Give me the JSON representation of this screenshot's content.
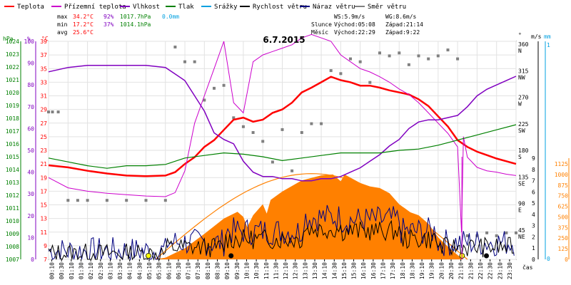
{
  "chart_data": {
    "type": "line",
    "title": "6.7.2015",
    "x_axis_label": "čas",
    "x_ticks": [
      "00:10",
      "00:30",
      "01:10",
      "01:30",
      "02:10",
      "02:30",
      "03:10",
      "03:30",
      "04:10",
      "04:30",
      "05:10",
      "05:30",
      "06:10",
      "06:30",
      "07:10",
      "07:30",
      "08:10",
      "08:30",
      "09:10",
      "09:30",
      "10:10",
      "10:30",
      "11:10",
      "11:30",
      "12:10",
      "12:30",
      "13:10",
      "13:30",
      "14:10",
      "14:30",
      "15:10",
      "15:30",
      "16:10",
      "16:30",
      "17:10",
      "17:30",
      "18:10",
      "18:30",
      "19:10",
      "19:30",
      "20:10",
      "20:30",
      "21:10",
      "21:30",
      "22:10",
      "22:30",
      "23:10",
      "23:30"
    ],
    "legend": [
      {
        "label": "Teplota",
        "color": "#ff0000"
      },
      {
        "label": "Přízemní teplota",
        "color": "#cc00cc"
      },
      {
        "label": "Vlhkost",
        "color": "#8000c0"
      },
      {
        "label": "Tlak",
        "color": "#008000"
      },
      {
        "label": "Srážky",
        "color": "#00a0e0"
      },
      {
        "label": "Rychlost větru",
        "color": "#000000"
      },
      {
        "label": "Náraz větru",
        "color": "#000080"
      },
      {
        "label": "Směr větru",
        "color": "#808080"
      }
    ],
    "stats": {
      "max_label": "max",
      "max_temp": "34.2°C",
      "max_hum": "92%",
      "max_press": "1017.7hPa",
      "max_rain": "0.0mm",
      "min_label": "min",
      "min_temp": "17.2°C",
      "min_hum": "37%",
      "min_press": "1014.1hPa",
      "avg_label": "avg",
      "avg_temp": "25.6°C",
      "ws": "WS:5.9m/s",
      "wg": "WG:8.6m/s",
      "sun_label": "Slunce",
      "sunrise": "Východ:05:08",
      "sunset": "Západ:21:14",
      "moon_label": "Měsíc",
      "moonrise": "Východ:22:29",
      "moonset": "Západ:9:22"
    },
    "axes": {
      "hpa": {
        "unit": "hPa",
        "color": "#008000",
        "ticks": [
          "1024",
          "1023",
          "1022",
          "1021",
          "1020",
          "1019",
          "1018",
          "1017",
          "1016",
          "1015",
          "1014",
          "1013",
          "1012",
          "1011",
          "1010",
          "1009",
          "1008",
          "1007"
        ]
      },
      "pct": {
        "unit": "%",
        "color": "#8000c0",
        "ticks": [
          "100",
          "90",
          "80",
          "70",
          "60",
          "50",
          "40",
          "30",
          "20",
          "10",
          "0"
        ]
      },
      "temp": {
        "unit": "°C",
        "color": "#ff0000",
        "ticks": [
          "39",
          "37",
          "35",
          "33",
          "31",
          "29",
          "27",
          "25",
          "23",
          "21",
          "19",
          "17",
          "15",
          "13",
          "11",
          "9",
          "7"
        ]
      },
      "dir": {
        "unit": "°",
        "ticks": [
          "360",
          "315",
          "270",
          "225",
          "180",
          "135",
          "90",
          "45"
        ],
        "labels": [
          "N",
          "NW",
          "W",
          "SW",
          "S",
          "SE",
          "E",
          "NE"
        ]
      },
      "ms": {
        "unit": "m/s",
        "ticks": [
          "9",
          "8",
          "7",
          "6",
          "5",
          "4",
          "3",
          "2",
          "1",
          "0"
        ]
      },
      "mm": {
        "unit": "mm",
        "ticks": [
          "1",
          "0"
        ]
      },
      "wm2": {
        "ticks": [
          "1125",
          "1000",
          "875",
          "750",
          "625",
          "500",
          "375",
          "250",
          "125",
          "0"
        ]
      }
    },
    "series": [
      {
        "name": "Teplota",
        "color": "#ff0000",
        "x": [
          0,
          1,
          2,
          3,
          4,
          5,
          6,
          6.5,
          7,
          7.5,
          8,
          8.5,
          9,
          9.5,
          10,
          10.5,
          11,
          11.5,
          12,
          12.5,
          13,
          13.5,
          14,
          14.5,
          15,
          15.5,
          16,
          16.5,
          17,
          17.5,
          18,
          18.5,
          19,
          19.5,
          20,
          20.5,
          21,
          21.5,
          22,
          22.5,
          23,
          23.5,
          24
        ],
        "y": [
          20.8,
          20.5,
          20.0,
          19.6,
          19.3,
          19.2,
          19.3,
          19.8,
          21.0,
          22.0,
          23.5,
          24.5,
          26.0,
          27.5,
          27.8,
          27.2,
          27.5,
          28.5,
          29.0,
          30.0,
          31.5,
          32.2,
          33.0,
          33.8,
          33.3,
          33.0,
          32.5,
          32.5,
          32.2,
          31.8,
          31.5,
          31.2,
          30.5,
          29.5,
          28.0,
          26.5,
          24.5,
          23.5,
          22.8,
          22.3,
          21.8,
          21.4,
          21.0
        ]
      },
      {
        "name": "Přízemní teplota",
        "color": "#cc00cc",
        "x": [
          0,
          1,
          2,
          3,
          4,
          5,
          6,
          6.5,
          7,
          7.5,
          8,
          8.5,
          9,
          9.5,
          10,
          10.5,
          11,
          11.5,
          12,
          12.5,
          13,
          13.5,
          14,
          14.5,
          15,
          15.5,
          16,
          16.5,
          17,
          17.5,
          18,
          18.5,
          19,
          19.5,
          20,
          20.5,
          21,
          21.2,
          21.3,
          21.5,
          22,
          22.5,
          23,
          23.5,
          24
        ],
        "y": [
          19.0,
          17.5,
          17.0,
          16.7,
          16.5,
          16.3,
          16.2,
          16.8,
          20.0,
          27.0,
          31.0,
          35.0,
          39.0,
          30.0,
          28.5,
          36.0,
          37.0,
          37.5,
          38.0,
          38.5,
          39.5,
          40.0,
          39.5,
          39.0,
          37.0,
          36.0,
          35.0,
          34.5,
          33.8,
          33.0,
          32.0,
          31.2,
          30.0,
          28.5,
          27.0,
          25.5,
          23.5,
          11.0,
          25.0,
          22.0,
          20.5,
          20.0,
          19.8,
          19.5,
          19.3
        ]
      },
      {
        "name": "Vlhkost",
        "color": "#8000c0",
        "x": [
          0,
          1,
          2,
          3,
          4,
          5,
          6,
          6.5,
          7,
          7.5,
          8,
          8.5,
          9,
          9.5,
          10,
          10.5,
          11,
          11.5,
          12,
          12.5,
          13,
          13.5,
          14,
          14.5,
          15,
          15.5,
          16,
          16.5,
          17,
          17.5,
          18,
          18.5,
          19,
          19.5,
          20,
          20.5,
          21,
          21.5,
          22,
          22.5,
          23,
          23.5,
          24
        ],
        "y": [
          86,
          88,
          89,
          89,
          89,
          89,
          88,
          85,
          82,
          75,
          68,
          58,
          55,
          53,
          45,
          40,
          38,
          38,
          37,
          37,
          36,
          36,
          37,
          37,
          38,
          40,
          42,
          45,
          48,
          52,
          55,
          60,
          63,
          64,
          64,
          65,
          66,
          70,
          75,
          78,
          80,
          82,
          84
        ]
      },
      {
        "name": "Tlak",
        "color": "#008000",
        "x": [
          0,
          1,
          2,
          3,
          4,
          5,
          6,
          7,
          8,
          9,
          10,
          11,
          12,
          13,
          14,
          15,
          16,
          17,
          18,
          19,
          20,
          21,
          22,
          23,
          24
        ],
        "y": [
          1014.9,
          1014.6,
          1014.3,
          1014.1,
          1014.3,
          1014.3,
          1014.4,
          1014.9,
          1015.1,
          1015.3,
          1015.2,
          1015.0,
          1014.7,
          1014.9,
          1015.1,
          1015.3,
          1015.3,
          1015.3,
          1015.5,
          1015.6,
          1015.9,
          1016.3,
          1016.7,
          1017.1,
          1017.5
        ]
      }
    ]
  }
}
